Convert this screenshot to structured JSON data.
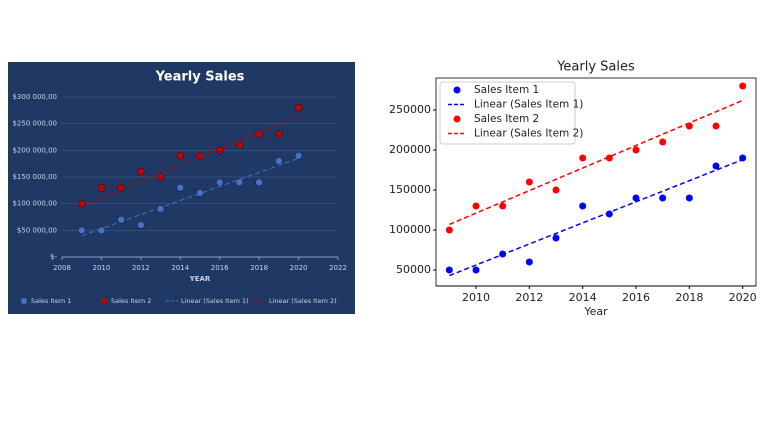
{
  "chart_data": [
    {
      "type": "scatter",
      "title": "Yearly Sales",
      "xlabel": "YEAR",
      "x": [
        2009,
        2010,
        2011,
        2012,
        2013,
        2014,
        2015,
        2016,
        2017,
        2018,
        2019,
        2020
      ],
      "series": [
        {
          "name": "Sales Item 1",
          "color": "#4472c4",
          "values": [
            50000,
            50000,
            70000,
            60000,
            90000,
            130000,
            120000,
            140000,
            140000,
            140000,
            180000,
            190000
          ]
        },
        {
          "name": "Sales Item 2",
          "color": "#c00000",
          "values": [
            100000,
            130000,
            130000,
            160000,
            150000,
            190000,
            190000,
            200000,
            210000,
            230000,
            230000,
            280000
          ]
        },
        {
          "name": "Linear (Sales Item 1)",
          "color": "#4472c4",
          "x": [
            2009,
            2020
          ],
          "values": [
            40000,
            185000
          ]
        },
        {
          "name": "Linear (Sales Item 2)",
          "color": "#c00000",
          "x": [
            2009,
            2020
          ],
          "values": [
            95000,
            265000
          ]
        }
      ],
      "xlim": [
        2008,
        2022
      ],
      "xticks": [
        2008,
        2010,
        2012,
        2014,
        2016,
        2018,
        2020,
        2022
      ],
      "ylim": [
        0,
        300000
      ],
      "yticks": [
        {
          "value": 0,
          "label": "$-"
        },
        {
          "value": 50000,
          "label": "$50 000,00"
        },
        {
          "value": 100000,
          "label": "$100 000,00"
        },
        {
          "value": 150000,
          "label": "$150 000,00"
        },
        {
          "value": 200000,
          "label": "$200 000,00"
        },
        {
          "value": 250000,
          "label": "$250 000,00"
        },
        {
          "value": 300000,
          "label": "$300 000,00"
        }
      ],
      "grid": true,
      "legend": "bottom",
      "background": "#1f3864",
      "text_color": "#c9d3e6"
    },
    {
      "type": "scatter",
      "title": "Yearly Sales",
      "xlabel": "Year",
      "x": [
        2009,
        2010,
        2011,
        2012,
        2013,
        2014,
        2015,
        2016,
        2017,
        2018,
        2019,
        2020
      ],
      "series": [
        {
          "name": "Sales Item 1",
          "color": "#0000ff",
          "values": [
            50000,
            50000,
            70000,
            60000,
            90000,
            130000,
            120000,
            140000,
            140000,
            140000,
            180000,
            190000
          ]
        },
        {
          "name": "Linear (Sales Item 1)",
          "color": "#0000ff",
          "x": [
            2009,
            2020
          ],
          "values": [
            43000,
            188000
          ]
        },
        {
          "name": "Sales Item 2",
          "color": "#ff0000",
          "values": [
            100000,
            130000,
            130000,
            160000,
            150000,
            190000,
            190000,
            200000,
            210000,
            230000,
            230000,
            280000
          ]
        },
        {
          "name": "Linear (Sales Item 2)",
          "color": "#ff0000",
          "x": [
            2009,
            2020
          ],
          "values": [
            107000,
            262000
          ]
        }
      ],
      "xlim": [
        2008.5,
        2020.5
      ],
      "xticks": [
        2010,
        2012,
        2014,
        2016,
        2018,
        2020
      ],
      "ylim": [
        30000,
        290000
      ],
      "yticks": [
        50000,
        100000,
        150000,
        200000,
        250000
      ],
      "grid": false,
      "legend": "upper left",
      "background": "#ffffff",
      "text_color": "#222222"
    }
  ]
}
